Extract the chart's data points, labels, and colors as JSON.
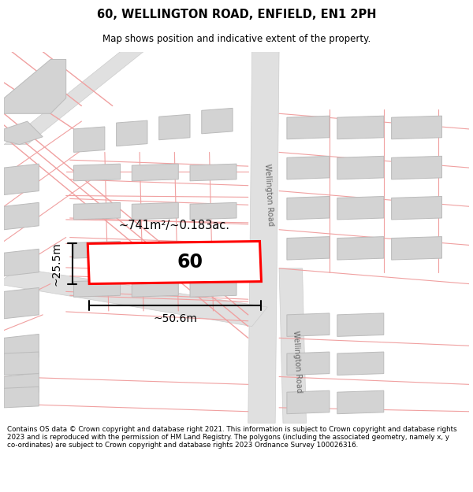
{
  "title": "60, WELLINGTON ROAD, ENFIELD, EN1 2PH",
  "subtitle": "Map shows position and indicative extent of the property.",
  "footer": "Contains OS data © Crown copyright and database right 2021. This information is subject to Crown copyright and database rights 2023 and is reproduced with the permission of HM Land Registry. The polygons (including the associated geometry, namely x, y co-ordinates) are subject to Crown copyright and database rights 2023 Ordnance Survey 100026316.",
  "area_label": "~741m²/~0.183ac.",
  "width_label": "~50.6m",
  "height_label": "~25.5m",
  "property_number": "60",
  "road_label": "Wellington Road",
  "pink": "#f0a0a0",
  "building_fill": "#d3d3d3",
  "building_stroke": "#bbbbbb",
  "road_gray": "#e0e0e0",
  "road_gray_stroke": "#cccccc",
  "prop_fill": "#ffffff",
  "prop_stroke": "#ff0000",
  "map_bg": "#ffffff"
}
